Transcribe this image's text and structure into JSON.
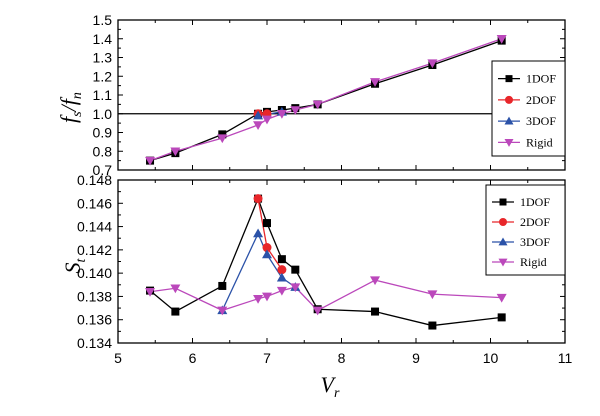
{
  "chart_data": [
    {
      "type": "line",
      "panel": "top",
      "ylabel": {
        "main": "f",
        "sub1": "s",
        "sep": "/",
        "main2": "f",
        "sub2": "n"
      },
      "xlim": [
        5,
        11
      ],
      "ylim": [
        0.7,
        1.5
      ],
      "yticks": [
        "0.7",
        "0.8",
        "0.9",
        "1.0",
        "1.1",
        "1.2",
        "1.3",
        "1.4",
        "1.5"
      ],
      "yticks_values": [
        0.7,
        0.8,
        0.9,
        1.0,
        1.1,
        1.2,
        1.3,
        1.4,
        1.5
      ],
      "reference_line_y": 1.0,
      "legend": "right",
      "series": [
        {
          "name": "1DOF",
          "color": "#000000",
          "marker": "square",
          "x": [
            5.43,
            5.77,
            6.4,
            6.88,
            7.0,
            7.2,
            7.38,
            7.68,
            8.45,
            9.22,
            10.15
          ],
          "y": [
            0.75,
            0.79,
            0.89,
            1.0,
            1.01,
            1.02,
            1.03,
            1.05,
            1.16,
            1.26,
            1.39
          ]
        },
        {
          "name": "2DOF",
          "color": "#e8262a",
          "marker": "circle",
          "x": [
            6.88,
            7.0
          ],
          "y": [
            1.0,
            1.0
          ]
        },
        {
          "name": "3DOF",
          "color": "#2b52a8",
          "marker": "triangle-up",
          "x": [
            6.88,
            7.2
          ],
          "y": [
            0.99,
            1.01
          ]
        },
        {
          "name": "Rigid",
          "color": "#bb48bb",
          "marker": "triangle-down",
          "x": [
            5.43,
            5.77,
            6.4,
            6.88,
            7.0,
            7.2,
            7.38,
            7.68,
            8.45,
            9.22,
            10.15
          ],
          "y": [
            0.75,
            0.8,
            0.87,
            0.94,
            0.97,
            1.0,
            1.02,
            1.05,
            1.17,
            1.27,
            1.4
          ]
        }
      ]
    },
    {
      "type": "line",
      "panel": "bottom",
      "ylabel": {
        "main": "S",
        "sub1": "t"
      },
      "xlabel": {
        "main": "V",
        "sub1": "r"
      },
      "xlim": [
        5,
        11
      ],
      "xticks": [
        "5",
        "6",
        "7",
        "8",
        "9",
        "10",
        "11"
      ],
      "xticks_values": [
        5,
        6,
        7,
        8,
        9,
        10,
        11
      ],
      "ylim": [
        0.134,
        0.148
      ],
      "yticks": [
        "0.134",
        "0.136",
        "0.138",
        "0.140",
        "0.142",
        "0.144",
        "0.146",
        "0.148"
      ],
      "yticks_values": [
        0.134,
        0.136,
        0.138,
        0.14,
        0.142,
        0.144,
        0.146,
        0.148
      ],
      "legend": "top-right",
      "series": [
        {
          "name": "1DOF",
          "color": "#000000",
          "marker": "square",
          "x": [
            5.43,
            5.77,
            6.4,
            6.88,
            7.0,
            7.2,
            7.38,
            7.68,
            8.45,
            9.22,
            10.15
          ],
          "y": [
            0.1385,
            0.1367,
            0.1389,
            0.1464,
            0.1443,
            0.1412,
            0.1403,
            0.1369,
            0.1367,
            0.1355,
            0.1362
          ]
        },
        {
          "name": "2DOF",
          "color": "#e8262a",
          "marker": "circle",
          "x": [
            6.88,
            7.0,
            7.2
          ],
          "y": [
            0.1464,
            0.1422,
            0.1403
          ]
        },
        {
          "name": "3DOF",
          "color": "#2b52a8",
          "marker": "triangle-up",
          "x": [
            6.4,
            6.88,
            7.0,
            7.2,
            7.38
          ],
          "y": [
            0.1368,
            0.1434,
            0.1416,
            0.1396,
            0.1388
          ]
        },
        {
          "name": "Rigid",
          "color": "#bb48bb",
          "marker": "triangle-down",
          "x": [
            5.43,
            5.77,
            6.4,
            6.88,
            7.0,
            7.2,
            7.38,
            7.68,
            8.45,
            9.22,
            10.15
          ],
          "y": [
            0.1384,
            0.1387,
            0.1368,
            0.1378,
            0.138,
            0.1385,
            0.1388,
            0.1368,
            0.1394,
            0.1382,
            0.1379
          ]
        }
      ]
    }
  ]
}
